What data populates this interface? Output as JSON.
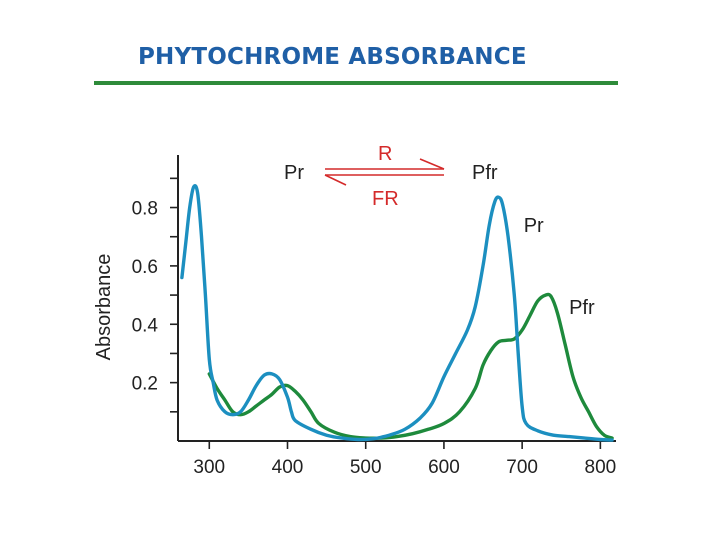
{
  "page": {
    "title": "PHYTOCHROME ABSORBANCE"
  },
  "colors": {
    "title": "#1f5fa6",
    "title_rule": "#2e8b3a",
    "pr_curve": "#1c8fc0",
    "pfr_curve": "#1e8a3c",
    "reaction": "#d42a2a",
    "axis": "#222222"
  },
  "reaction": {
    "left": "Pr",
    "right": "Pfr",
    "forward": "R",
    "reverse": "FR"
  },
  "chart_data": {
    "type": "line",
    "title": "",
    "xlabel": "",
    "ylabel": "Absorbance",
    "xlim": [
      260,
      820
    ],
    "ylim": [
      0,
      0.98
    ],
    "x_ticks": [
      300,
      400,
      500,
      600,
      700,
      800
    ],
    "x_tick_labels": [
      "300",
      "400",
      "500",
      "600",
      "700",
      "800"
    ],
    "y_ticks": [
      0.2,
      0.4,
      0.6,
      0.8
    ],
    "y_tick_labels": [
      "0.2",
      "0.4",
      "0.6",
      "0.8"
    ],
    "y_minor_ticks": [
      0.1,
      0.3,
      0.5,
      0.7,
      0.9
    ],
    "grid": false,
    "series": [
      {
        "name": "Pr",
        "color": "#1c8fc0",
        "points": [
          [
            265,
            0.56
          ],
          [
            270,
            0.68
          ],
          [
            275,
            0.8
          ],
          [
            280,
            0.87
          ],
          [
            285,
            0.85
          ],
          [
            290,
            0.7
          ],
          [
            295,
            0.5
          ],
          [
            300,
            0.28
          ],
          [
            305,
            0.2
          ],
          [
            310,
            0.14
          ],
          [
            320,
            0.1
          ],
          [
            330,
            0.09
          ],
          [
            340,
            0.1
          ],
          [
            350,
            0.14
          ],
          [
            360,
            0.19
          ],
          [
            370,
            0.225
          ],
          [
            380,
            0.23
          ],
          [
            390,
            0.21
          ],
          [
            400,
            0.15
          ],
          [
            405,
            0.1
          ],
          [
            410,
            0.07
          ],
          [
            430,
            0.04
          ],
          [
            450,
            0.02
          ],
          [
            470,
            0.01
          ],
          [
            490,
            0.005
          ],
          [
            510,
            0.008
          ],
          [
            530,
            0.02
          ],
          [
            550,
            0.04
          ],
          [
            570,
            0.08
          ],
          [
            585,
            0.13
          ],
          [
            600,
            0.22
          ],
          [
            615,
            0.3
          ],
          [
            630,
            0.38
          ],
          [
            640,
            0.46
          ],
          [
            650,
            0.6
          ],
          [
            658,
            0.74
          ],
          [
            665,
            0.82
          ],
          [
            670,
            0.835
          ],
          [
            675,
            0.81
          ],
          [
            682,
            0.7
          ],
          [
            690,
            0.5
          ],
          [
            695,
            0.3
          ],
          [
            700,
            0.12
          ],
          [
            705,
            0.06
          ],
          [
            720,
            0.035
          ],
          [
            740,
            0.02
          ],
          [
            760,
            0.015
          ],
          [
            780,
            0.01
          ],
          [
            800,
            0.005
          ],
          [
            815,
            0.003
          ]
        ]
      },
      {
        "name": "Pfr",
        "color": "#1e8a3c",
        "points": [
          [
            300,
            0.23
          ],
          [
            310,
            0.18
          ],
          [
            320,
            0.14
          ],
          [
            330,
            0.1
          ],
          [
            340,
            0.09
          ],
          [
            350,
            0.1
          ],
          [
            360,
            0.12
          ],
          [
            370,
            0.14
          ],
          [
            380,
            0.16
          ],
          [
            390,
            0.185
          ],
          [
            400,
            0.19
          ],
          [
            410,
            0.17
          ],
          [
            420,
            0.14
          ],
          [
            430,
            0.1
          ],
          [
            440,
            0.06
          ],
          [
            460,
            0.03
          ],
          [
            480,
            0.015
          ],
          [
            500,
            0.01
          ],
          [
            520,
            0.01
          ],
          [
            540,
            0.015
          ],
          [
            560,
            0.025
          ],
          [
            580,
            0.04
          ],
          [
            600,
            0.06
          ],
          [
            620,
            0.1
          ],
          [
            640,
            0.18
          ],
          [
            650,
            0.26
          ],
          [
            660,
            0.31
          ],
          [
            670,
            0.34
          ],
          [
            680,
            0.345
          ],
          [
            690,
            0.35
          ],
          [
            700,
            0.38
          ],
          [
            710,
            0.43
          ],
          [
            720,
            0.48
          ],
          [
            730,
            0.5
          ],
          [
            737,
            0.495
          ],
          [
            745,
            0.44
          ],
          [
            755,
            0.33
          ],
          [
            765,
            0.22
          ],
          [
            775,
            0.15
          ],
          [
            785,
            0.1
          ],
          [
            795,
            0.05
          ],
          [
            805,
            0.02
          ],
          [
            815,
            0.01
          ]
        ]
      }
    ],
    "annotations": [
      {
        "text": "Pr",
        "x": 702,
        "y": 0.74
      },
      {
        "text": "Pfr",
        "x": 760,
        "y": 0.46
      }
    ]
  }
}
